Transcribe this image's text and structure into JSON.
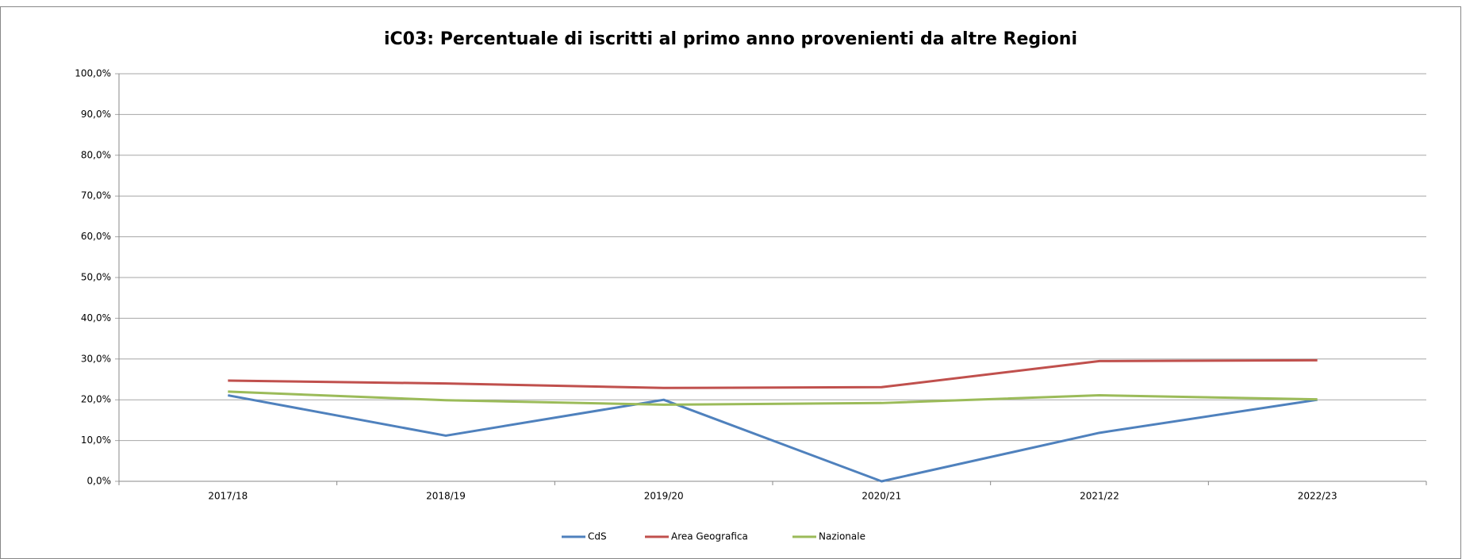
{
  "chart_data": {
    "type": "line",
    "title": "iC03: Percentuale di iscritti al primo anno provenienti da altre Regioni",
    "categories": [
      "2017/18",
      "2018/19",
      "2019/20",
      "2020/21",
      "2021/22",
      "2022/23"
    ],
    "series": [
      {
        "name": "CdS",
        "color": "#4f81bd",
        "values": [
          21.1,
          11.2,
          20.0,
          0.0,
          11.9,
          20.0
        ]
      },
      {
        "name": "Area Geografica",
        "color": "#c0504d",
        "values": [
          24.7,
          24.0,
          22.9,
          23.1,
          29.5,
          29.7
        ]
      },
      {
        "name": "Nazionale",
        "color": "#9bbb59",
        "values": [
          22.0,
          19.9,
          18.8,
          19.2,
          21.1,
          20.1
        ]
      }
    ],
    "ylim": [
      0,
      100
    ],
    "yticks": [
      {
        "value": 0,
        "label": "0,0%"
      },
      {
        "value": 10,
        "label": "10,0%"
      },
      {
        "value": 20,
        "label": "20,0%"
      },
      {
        "value": 30,
        "label": "30,0%"
      },
      {
        "value": 40,
        "label": "40,0%"
      },
      {
        "value": 50,
        "label": "50,0%"
      },
      {
        "value": 60,
        "label": "60,0%"
      },
      {
        "value": 70,
        "label": "70,0%"
      },
      {
        "value": 80,
        "label": "80,0%"
      },
      {
        "value": 90,
        "label": "90,0%"
      },
      {
        "value": 100,
        "label": "100,0%"
      }
    ],
    "grid": true,
    "legend": "bottom"
  }
}
